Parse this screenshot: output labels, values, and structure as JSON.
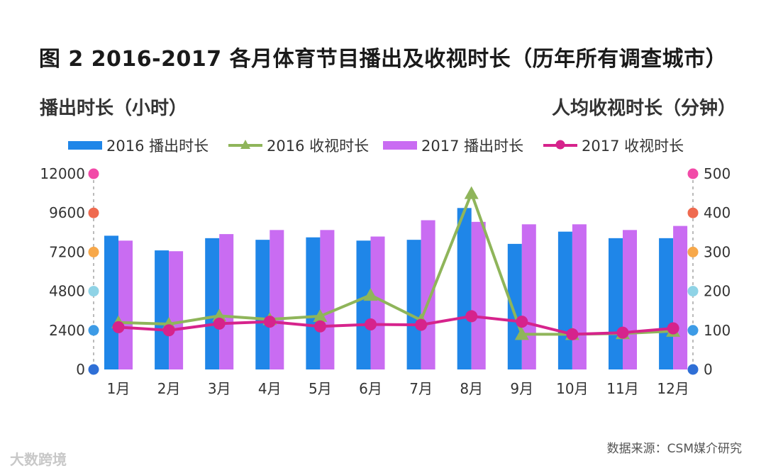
{
  "title": "图 2 2016-2017 各月体育节目播出及收视时长（历年所有调查城市）",
  "source": "数据来源：CSM媒介研究",
  "watermark": "大数跨境",
  "colors": {
    "bar2016": "#1f86e8",
    "bar2017": "#c96cf2",
    "line2016": "#8fb55a",
    "line2017": "#d6238c",
    "leftAxisDots": [
      "#2f6fd6",
      "#3d9be6",
      "#8fd3e6",
      "#f7a84a",
      "#ef6a4f",
      "#f24aa8"
    ]
  },
  "chart_data": {
    "type": "bar",
    "categories": [
      "1月",
      "2月",
      "3月",
      "4月",
      "5月",
      "6月",
      "7月",
      "8月",
      "9月",
      "10月",
      "11月",
      "12月"
    ],
    "left_axis": {
      "label": "播出时长（小时）",
      "ylim": [
        0,
        12000
      ],
      "ticks": [
        "0",
        "2400",
        "4800",
        "7200",
        "9600",
        "12000"
      ]
    },
    "right_axis": {
      "label": "人均收视时长（分钟）",
      "ylim": [
        0,
        500
      ],
      "ticks": [
        "0",
        "100",
        "200",
        "300",
        "400",
        "500"
      ]
    },
    "series": [
      {
        "name": "2016 播出时长",
        "kind": "bar",
        "axis": "left",
        "values": [
          8200,
          7300,
          8050,
          7950,
          8100,
          7900,
          7950,
          9900,
          7700,
          8450,
          8050,
          8050
        ]
      },
      {
        "name": "2016 收视时长",
        "kind": "line",
        "marker": "triangle",
        "axis": "right",
        "values": [
          120,
          116,
          137,
          128,
          136,
          190,
          126,
          450,
          90,
          90,
          92,
          98
        ]
      },
      {
        "name": "2017 播出时长",
        "kind": "bar",
        "axis": "left",
        "values": [
          7900,
          7250,
          8300,
          8550,
          8550,
          8150,
          9150,
          9050,
          8900,
          8900,
          8550,
          8800
        ]
      },
      {
        "name": "2017 收视时长",
        "kind": "line",
        "marker": "circle",
        "axis": "right",
        "values": [
          108,
          100,
          117,
          122,
          110,
          115,
          114,
          136,
          122,
          90,
          94,
          105
        ]
      }
    ],
    "grid": false,
    "legend_position": "top"
  }
}
